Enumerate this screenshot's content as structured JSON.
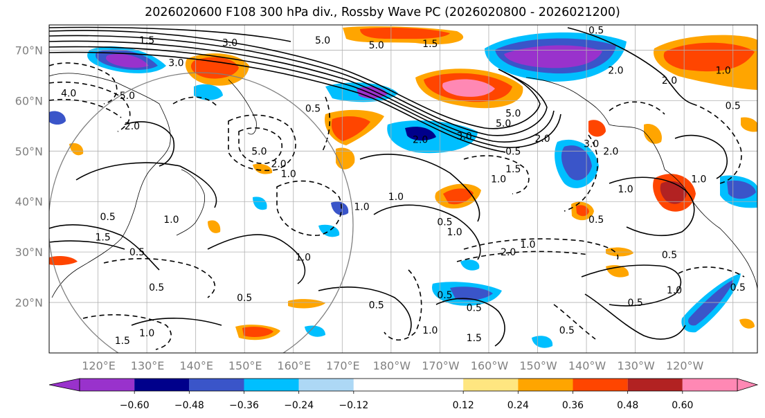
{
  "title": "2026020600 F108 300 hPa div., Rossby Wave PC (2026020800 - 2026021200)",
  "map": {
    "lat_labels": [
      "70°N",
      "60°N",
      "50°N",
      "40°N",
      "30°N",
      "20°N"
    ],
    "lon_labels": [
      "120°E",
      "130°E",
      "140°E",
      "150°E",
      "160°E",
      "170°E",
      "180°W",
      "170°W",
      "160°W",
      "150°W",
      "140°W",
      "130°W",
      "120°W"
    ],
    "label_color": "#808080",
    "contour_labels": [
      {
        "text": "1.5",
        "lon": 130,
        "lat": 72
      },
      {
        "text": "3.0",
        "lon": 147,
        "lat": 71.5
      },
      {
        "text": "5.0",
        "lon": 166,
        "lat": 72
      },
      {
        "text": "5.0",
        "lon": 177,
        "lat": 71
      },
      {
        "text": "1.5",
        "lon": 188,
        "lat": 71.3
      },
      {
        "text": "0.5",
        "lon": 222,
        "lat": 74
      },
      {
        "text": "3.0",
        "lon": 136,
        "lat": 67.5
      },
      {
        "text": "1.0",
        "lon": 248,
        "lat": 66
      },
      {
        "text": "2.0",
        "lon": 226,
        "lat": 66
      },
      {
        "text": "2.0",
        "lon": 237,
        "lat": 64
      },
      {
        "text": "4.0",
        "lon": 114,
        "lat": 61.5
      },
      {
        "text": "5.0",
        "lon": 126,
        "lat": 61
      },
      {
        "text": "0.5",
        "lon": 250,
        "lat": 59
      },
      {
        "text": "2.0",
        "lon": 127,
        "lat": 55
      },
      {
        "text": "0.5",
        "lon": 164,
        "lat": 58.5
      },
      {
        "text": "5.0",
        "lon": 205,
        "lat": 57.5
      },
      {
        "text": "5.0",
        "lon": 203,
        "lat": 55.5
      },
      {
        "text": "3.0",
        "lon": 195,
        "lat": 53
      },
      {
        "text": "2.0",
        "lon": 186,
        "lat": 52.3
      },
      {
        "text": "2.0",
        "lon": 211,
        "lat": 52.5
      },
      {
        "text": "3.0",
        "lon": 221,
        "lat": 51.5
      },
      {
        "text": "2.0",
        "lon": 225,
        "lat": 50
      },
      {
        "text": "0.5",
        "lon": 205,
        "lat": 50
      },
      {
        "text": "5.0",
        "lon": 153,
        "lat": 50
      },
      {
        "text": "2.0",
        "lon": 157,
        "lat": 47.5
      },
      {
        "text": "1.0",
        "lon": 159,
        "lat": 45.5
      },
      {
        "text": "1.5",
        "lon": 205,
        "lat": 46.5
      },
      {
        "text": "1.0",
        "lon": 202,
        "lat": 44.5
      },
      {
        "text": "1.0",
        "lon": 174,
        "lat": 39
      },
      {
        "text": "1.0",
        "lon": 181,
        "lat": 41
      },
      {
        "text": "1.0",
        "lon": 243,
        "lat": 44.5
      },
      {
        "text": "1.0",
        "lon": 228,
        "lat": 42.5
      },
      {
        "text": "0.5",
        "lon": 122,
        "lat": 37
      },
      {
        "text": "1.0",
        "lon": 135,
        "lat": 36.5
      },
      {
        "text": "0.5",
        "lon": 191,
        "lat": 36
      },
      {
        "text": "1.0",
        "lon": 193,
        "lat": 34
      },
      {
        "text": "0.5",
        "lon": 222,
        "lat": 36.5
      },
      {
        "text": "1.5",
        "lon": 121,
        "lat": 33
      },
      {
        "text": "0.5",
        "lon": 128,
        "lat": 30
      },
      {
        "text": "1.0",
        "lon": 162,
        "lat": 29
      },
      {
        "text": "1.0",
        "lon": 208,
        "lat": 31.5
      },
      {
        "text": "2.0",
        "lon": 204,
        "lat": 30
      },
      {
        "text": "0.5",
        "lon": 237,
        "lat": 29.5
      },
      {
        "text": "0.5",
        "lon": 132,
        "lat": 23
      },
      {
        "text": "0.5",
        "lon": 150,
        "lat": 21
      },
      {
        "text": "0.5",
        "lon": 177,
        "lat": 19.5
      },
      {
        "text": "0.5",
        "lon": 191,
        "lat": 21.5
      },
      {
        "text": "0.5",
        "lon": 197,
        "lat": 19
      },
      {
        "text": "1.0",
        "lon": 238,
        "lat": 22.5
      },
      {
        "text": "0.5",
        "lon": 230,
        "lat": 20
      },
      {
        "text": "0.5",
        "lon": 251,
        "lat": 23
      },
      {
        "text": "1.0",
        "lon": 188,
        "lat": 14.5
      },
      {
        "text": "1.5",
        "lon": 197,
        "lat": 13
      },
      {
        "text": "0.5",
        "lon": 216,
        "lat": 14.5
      },
      {
        "text": "1.0",
        "lon": 130,
        "lat": 14
      },
      {
        "text": "1.5",
        "lon": 125,
        "lat": 12.5
      }
    ]
  },
  "colorbar": {
    "ticks": [
      "−0.60",
      "−0.48",
      "−0.36",
      "−0.24",
      "−0.12",
      "0.12",
      "0.24",
      "0.36",
      "0.48",
      "0.60"
    ],
    "colors": [
      "#9932cc",
      "#00008b",
      "#3a55c9",
      "#00bfff",
      "#add8f5",
      "#ffffff",
      "#ffe680",
      "#ffa500",
      "#ff4500",
      "#b22222",
      "#ff88b4"
    ],
    "tick_values": [
      -0.6,
      -0.48,
      -0.36,
      -0.24,
      -0.12,
      0.12,
      0.24,
      0.36,
      0.48,
      0.6
    ]
  }
}
